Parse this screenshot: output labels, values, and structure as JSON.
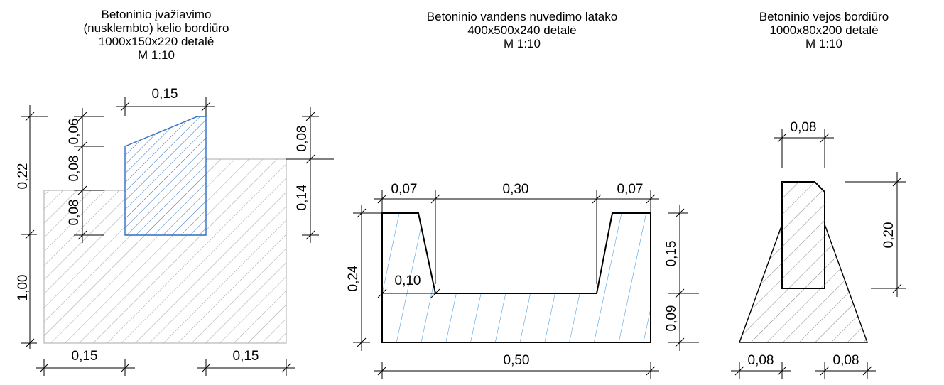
{
  "details": [
    {
      "title": [
        "Betoninio įvažiavimo",
        "(nusklembto) kelio bordiūro",
        "1000x150x220 detalė",
        "M 1:10"
      ],
      "dims": {
        "top_width": "0,15",
        "left_total": "0,22",
        "left_upper": "1,00",
        "seg_top": "0,06",
        "seg_mid": "0,08",
        "seg_low": "0,08",
        "right_top": "0,08",
        "right_low": "0,14",
        "bottom_left": "0,15",
        "bottom_right": "0,15"
      }
    },
    {
      "title": [
        "Betoninio vandens nuvedimo latako",
        "400x500x240 detalė",
        "M 1:10"
      ],
      "dims": {
        "top_left": "0,07",
        "top_mid": "0,30",
        "top_right": "0,07",
        "left_height": "0,24",
        "inner": "0,10",
        "right_upper": "0,15",
        "right_lower": "0,09",
        "bottom": "0,50"
      }
    },
    {
      "title": [
        "Betoninio vejos bordiūro",
        "1000x80x200 detalė",
        "M 1:10"
      ],
      "dims": {
        "top_width": "0,08",
        "right_height": "0,20",
        "bottom_left": "0,08",
        "bottom_right": "0,08"
      }
    }
  ],
  "colors": {
    "line": "#000000",
    "hatch_gray": "#8a8a8a",
    "hatch_blue": "#2f6fc4",
    "fill_gray": "#ececec"
  }
}
